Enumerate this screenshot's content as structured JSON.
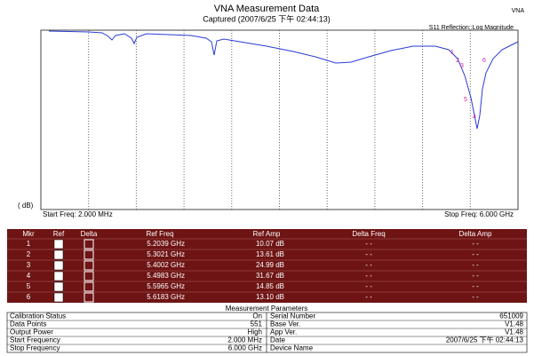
{
  "header": {
    "title": "VNA Measurement Data",
    "captured": "Captured  (2007/6/25 下午 02:44:13)",
    "badge": "VNA"
  },
  "plot": {
    "trace_label": "S11 Reflection::Log Magnitude",
    "unit": "( dB)",
    "start": "Start Freq: 2.000 MHz",
    "stop": "Stop Freq: 6.000 GHz"
  },
  "markers": {
    "columns": [
      "Mkr",
      "Ref",
      "Delta",
      "Ref Freq",
      "Ref Amp",
      "Delta Freq",
      "Delta Amp"
    ],
    "rows": [
      [
        "1",
        "5.2039 GHz",
        "10.07 dB",
        "- -",
        "- -"
      ],
      [
        "2",
        "5.3021 GHz",
        "13.61 dB",
        "- -",
        "- -"
      ],
      [
        "3",
        "5.4002 GHz",
        "24.99 dB",
        "- -",
        "- -"
      ],
      [
        "4",
        "5.4983 GHz",
        "31.67 dB",
        "- -",
        "- -"
      ],
      [
        "5",
        "5.5965 GHz",
        "14.85 dB",
        "- -",
        "- -"
      ],
      [
        "6",
        "5.6183 GHz",
        "13.10 dB",
        "- -",
        "- -"
      ]
    ]
  },
  "parameters": {
    "title": "Measurement Parameters",
    "rows": [
      [
        "Calibration Status",
        "On",
        "Serial Number",
        "651009"
      ],
      [
        "Data Points",
        "551",
        "Base Ver.",
        "V1.48"
      ],
      [
        "Output Power",
        "High",
        "App Ver.",
        "V1.48"
      ],
      [
        "Start Frequency",
        "2.000 MHz",
        "Date",
        "2007/6/25 下午 02:44:13"
      ],
      [
        "Stop Frequency",
        "6.000 GHz",
        "Device Name",
        ""
      ]
    ]
  }
}
